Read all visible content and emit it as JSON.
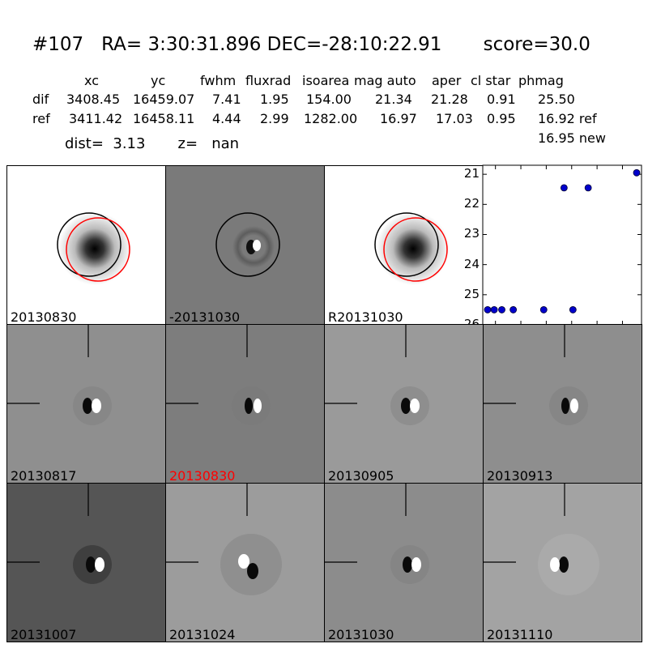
{
  "header": {
    "title": "#107   RA= 3:30:31.896 DEC=-28:10:22.91       score=30.0",
    "columns": [
      "xc",
      "yc",
      "fwhm",
      "fluxrad",
      "isoarea",
      "mag auto",
      "aper",
      "cl star",
      "phmag"
    ],
    "rows": [
      {
        "label": "dif",
        "values": [
          "3408.45",
          "16459.07",
          "7.41",
          "1.95",
          "154.00",
          "21.34",
          "21.28",
          "0.91",
          "25.50"
        ]
      },
      {
        "label": "ref",
        "values": [
          "3411.42",
          "16458.11",
          "4.44",
          "2.99",
          "1282.00",
          "16.97",
          "17.03",
          "0.95",
          "16.92 ref"
        ]
      }
    ],
    "extra_phmag": "16.95 new",
    "dist_line": "dist=  3.13       z=   nan"
  },
  "panels_top": [
    {
      "label": "20130830",
      "style": "light"
    },
    {
      "label": "-20131030",
      "style": "diff"
    },
    {
      "label": "R20131030",
      "style": "light"
    }
  ],
  "panels_grid": [
    {
      "label": "20130817",
      "color": "#000000"
    },
    {
      "label": "20130830",
      "color": "#ff0000"
    },
    {
      "label": "20130905",
      "color": "#000000"
    },
    {
      "label": "20130913",
      "color": "#000000"
    },
    {
      "label": "20131007",
      "color": "#000000"
    },
    {
      "label": "20131024",
      "color": "#000000"
    },
    {
      "label": "20131030",
      "color": "#000000"
    },
    {
      "label": "20131110",
      "color": "#000000"
    }
  ],
  "chart_data": {
    "type": "scatter",
    "title": "",
    "xlabel": "",
    "ylabel": "",
    "xlim": [
      -10,
      115
    ],
    "ylim": [
      26,
      20.7
    ],
    "y_inverted": true,
    "x_ticks": [
      "0",
      "20",
      "40",
      "60",
      "80",
      "100"
    ],
    "y_ticks": [
      "21",
      "22",
      "23",
      "24",
      "25",
      "26"
    ],
    "marker_color": "#0000cc",
    "series": [
      {
        "x": [
          -13,
          -1,
          5,
          14,
          38,
          54,
          61,
          73,
          114
        ],
        "y": [
          25.5,
          25.5,
          25.5,
          25.5,
          25.5,
          21.45,
          25.5,
          21.45,
          20.95
        ]
      }
    ]
  }
}
